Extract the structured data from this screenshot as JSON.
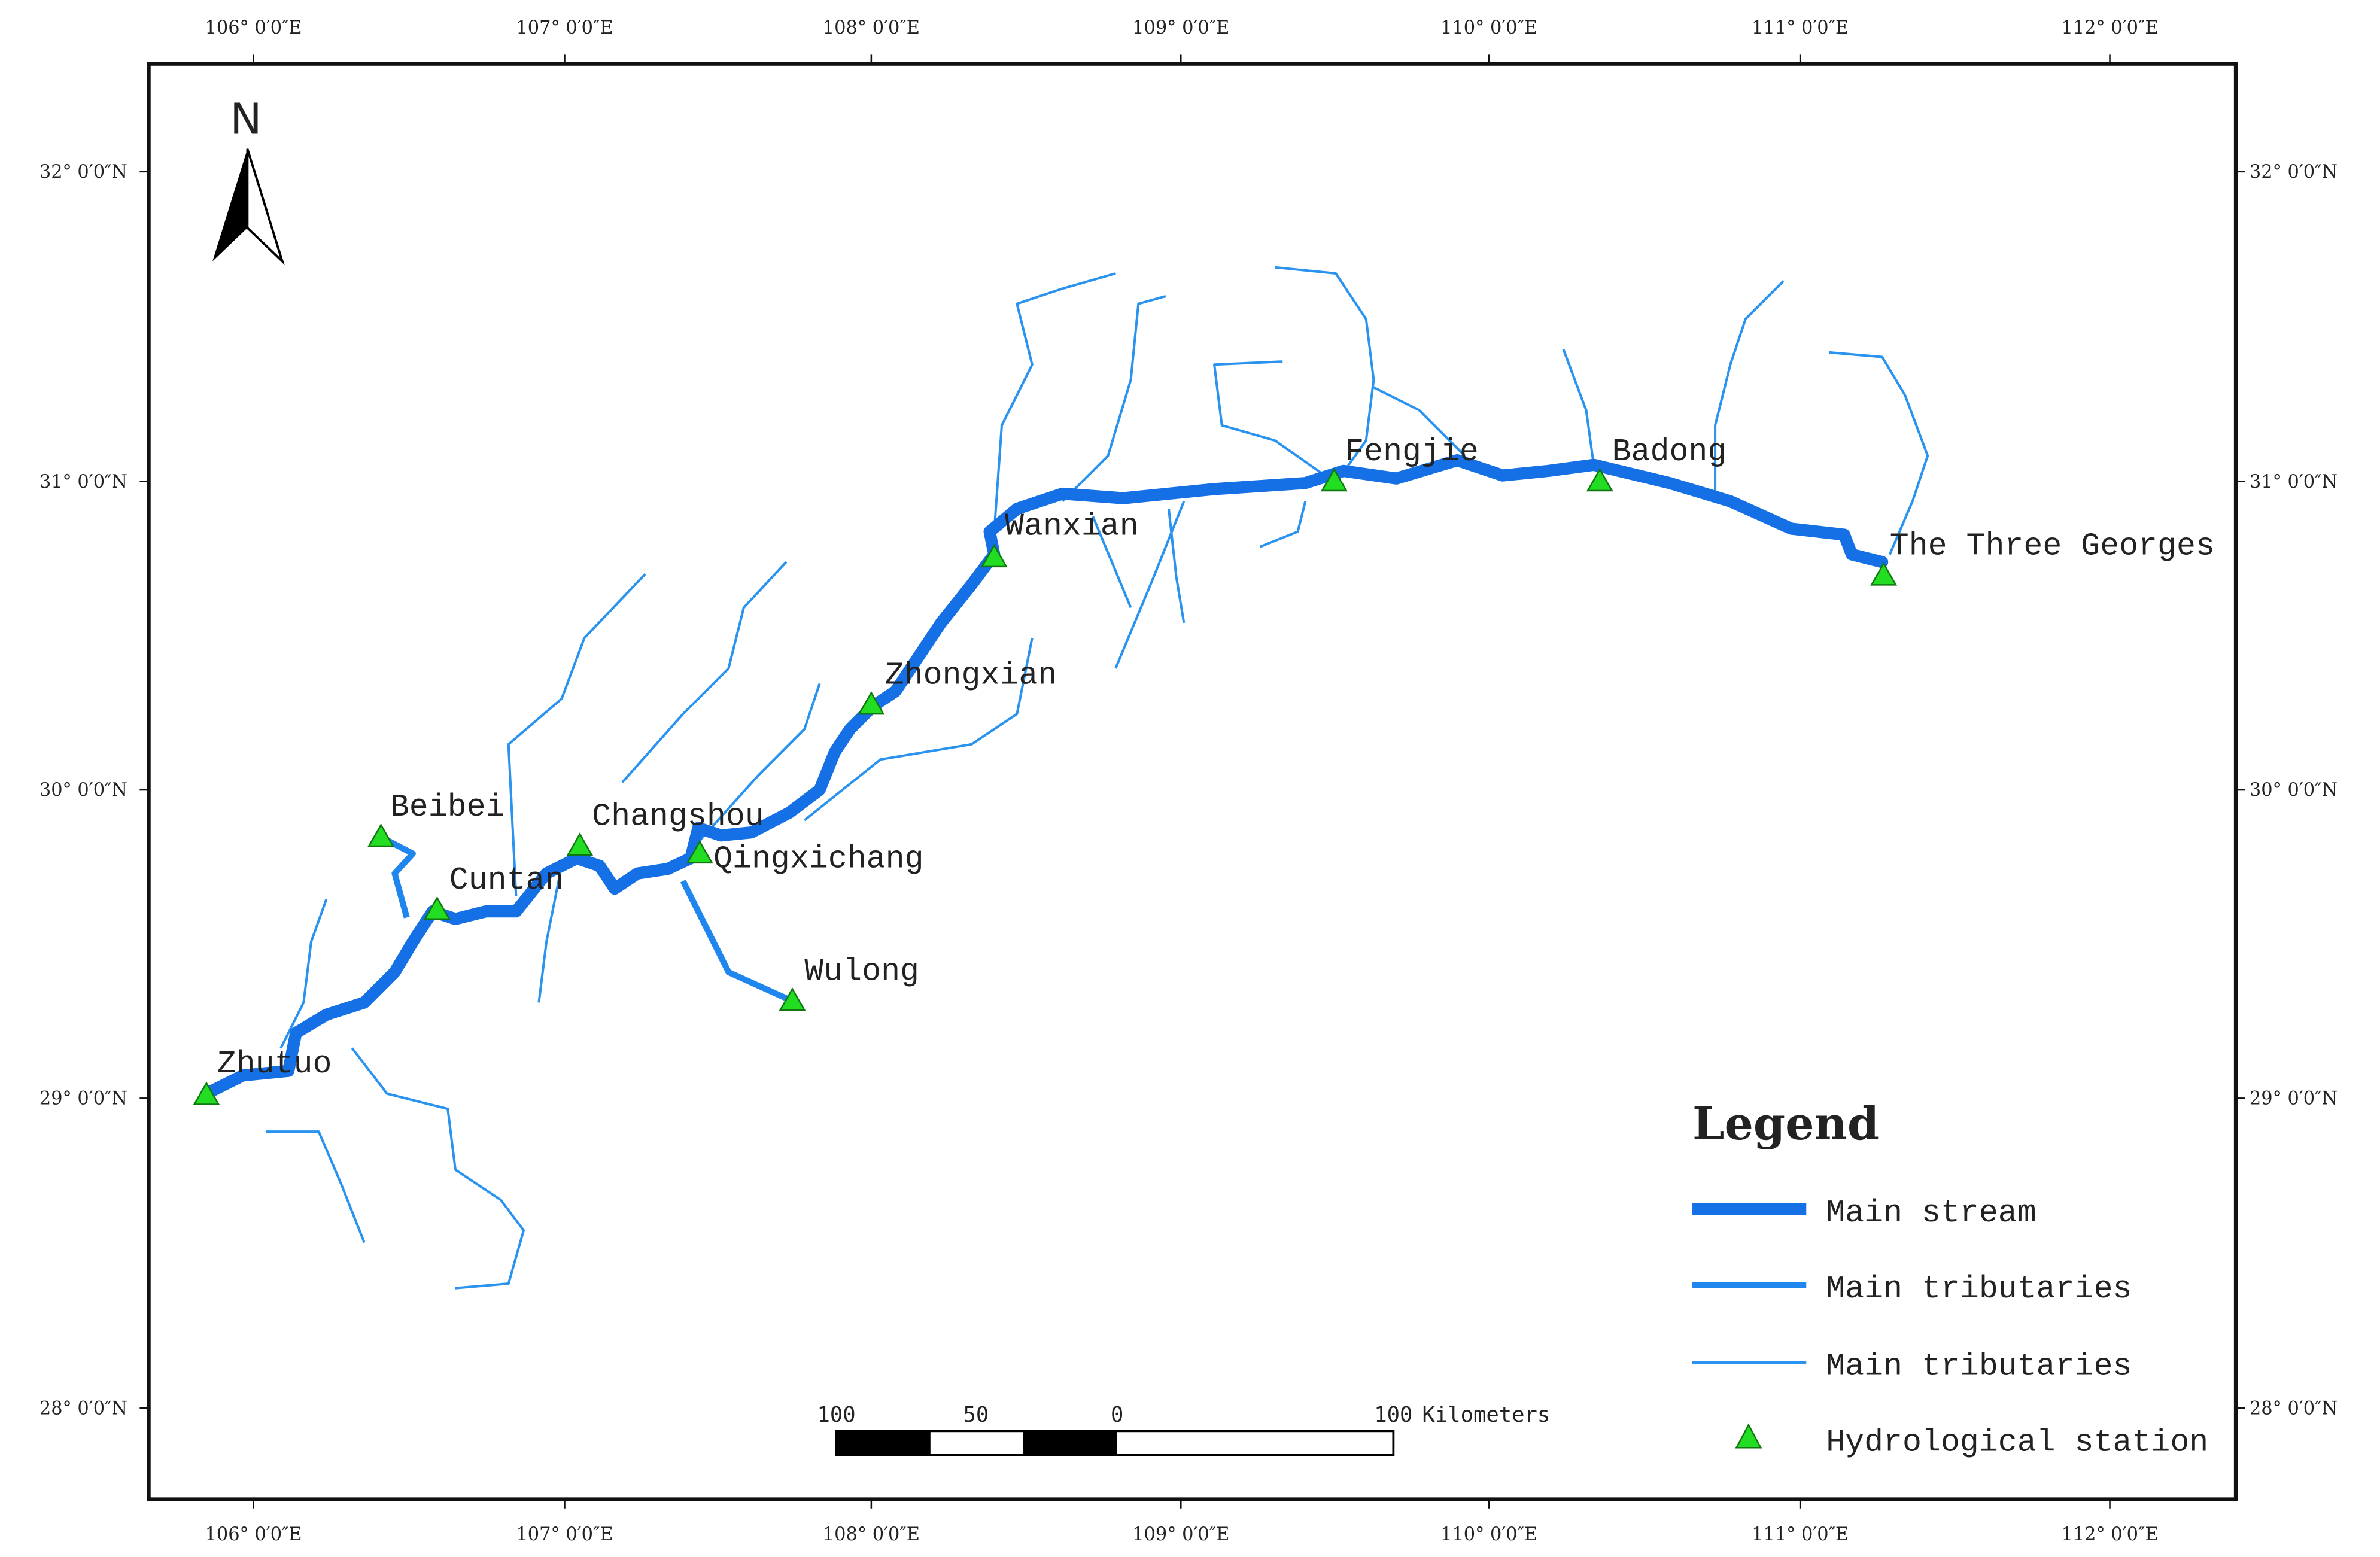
{
  "north": "N",
  "lon_labels": [
    "106° 0′0″E",
    "107° 0′0″E",
    "108° 0′0″E",
    "109° 0′0″E",
    "110° 0′0″E",
    "111° 0′0″E",
    "112° 0′0″E"
  ],
  "lat_labels": [
    "32° 0′0″N",
    "31° 0′0″N",
    "30° 0′0″N",
    "29° 0′0″N",
    "28° 0′0″N"
  ],
  "stations": [
    "Zhutuo",
    "Beibei",
    "Cuntan",
    "Changshou",
    "Qingxichang",
    "Wulong",
    "Zhongxian",
    "Wanxian",
    "Fengjie",
    "Badong",
    "The Three Georges"
  ],
  "legend": {
    "title": "Legend",
    "items": [
      "Main stream",
      "Main tributaries",
      "Main tributaries",
      "Hydrological station"
    ]
  },
  "scale_bar": {
    "labels": [
      100,
      50,
      0,
      100
    ],
    "unit": "Kilometers"
  }
}
